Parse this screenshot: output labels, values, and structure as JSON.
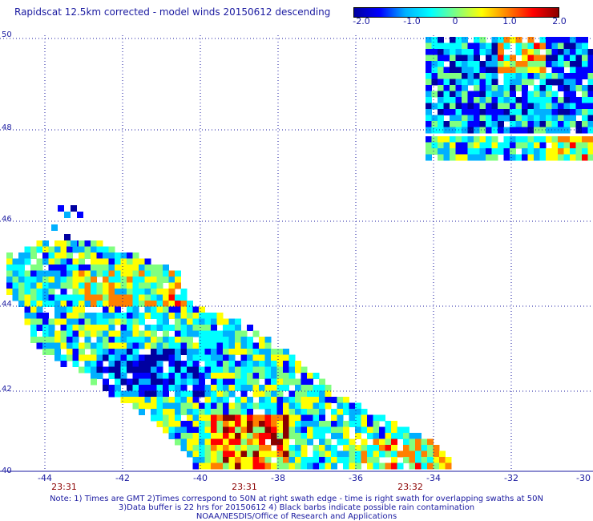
{
  "title": "Rapidscat 12.5km corrected - model winds 20150612 descending",
  "colorbar": {
    "min": -2.0,
    "max": 2.0,
    "labels": [
      "-2.0",
      "-1.0",
      "0",
      "1.0",
      "2.0"
    ],
    "colors": [
      "#0000a0",
      "#0000ff",
      "#00b0ff",
      "#00ffff",
      "#80ff80",
      "#ffff00",
      "#ff8000",
      "#ff0000",
      "#8b0000"
    ]
  },
  "map": {
    "lat_labels": [
      "50",
      "48",
      "46",
      "44",
      "42",
      "40"
    ],
    "lon_labels": [
      "-44",
      "-42",
      "-40",
      "-38",
      "-36",
      "-34",
      "-32",
      "-30"
    ],
    "time_labels": [
      "23:31",
      "23:31",
      "23:32"
    ],
    "gridlines": "dotted",
    "colors": {
      "gridline": "#1a1aa0",
      "text": "#1a1aa0",
      "time": "#8b0000"
    }
  },
  "notes": [
    "Note: 1) Times are GMT 2)Times correspond to 50N at right swath edge - time is right swath for overlapping swaths at 50N",
    "3)Data buffer is 22 hrs for 20150612 4) Black barbs indicate possible rain contamination",
    "NOAA/NESDIS/Office of Research and Applications"
  ]
}
